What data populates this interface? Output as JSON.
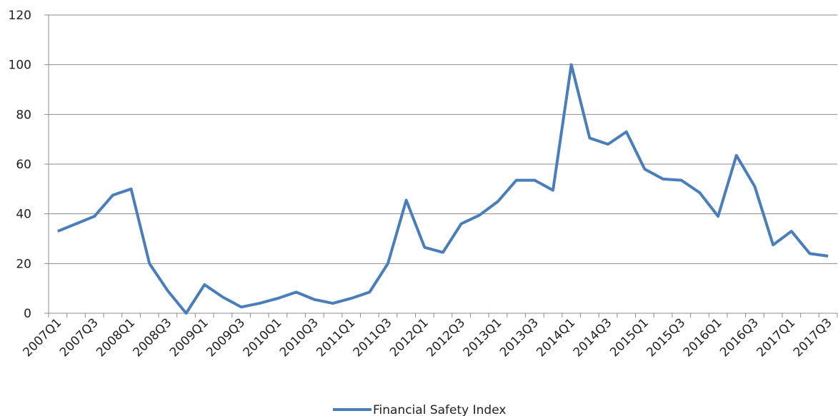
{
  "chart_data": {
    "type": "line",
    "categories": [
      "2007Q1",
      null,
      "2007Q3",
      null,
      "2008Q1",
      null,
      "2008Q3",
      null,
      "2009Q1",
      null,
      "2009Q3",
      null,
      "2010Q1",
      null,
      "2010Q3",
      null,
      "2011Q1",
      null,
      "2011Q3",
      null,
      "2012Q1",
      null,
      "2012Q3",
      null,
      "2013Q1",
      null,
      "2013Q3",
      null,
      "2014Q1",
      null,
      "2014Q3",
      null,
      "2015Q1",
      null,
      "2015Q3",
      null,
      "2016Q1",
      null,
      "2016Q3",
      null,
      "2017Q1",
      null,
      "2017Q3"
    ],
    "series": [
      {
        "name": "Financial Safety Index",
        "color": "#4a7ebb",
        "values": [
          33,
          36,
          39,
          47.5,
          50,
          20,
          9,
          0,
          11.5,
          6.5,
          2.5,
          4,
          6,
          8.5,
          5.5,
          4,
          6,
          8.5,
          20,
          45.5,
          26.5,
          24.5,
          36,
          39.5,
          45,
          53.5,
          53.5,
          49.5,
          100,
          70.5,
          68,
          73,
          58,
          54,
          53.5,
          48.5,
          39,
          63.5,
          51,
          27.5,
          33,
          24,
          23
        ]
      }
    ],
    "ylim": [
      0,
      120
    ],
    "yticks": [
      0,
      20,
      40,
      60,
      80,
      100,
      120
    ],
    "grid": true,
    "legend": "bottom"
  }
}
